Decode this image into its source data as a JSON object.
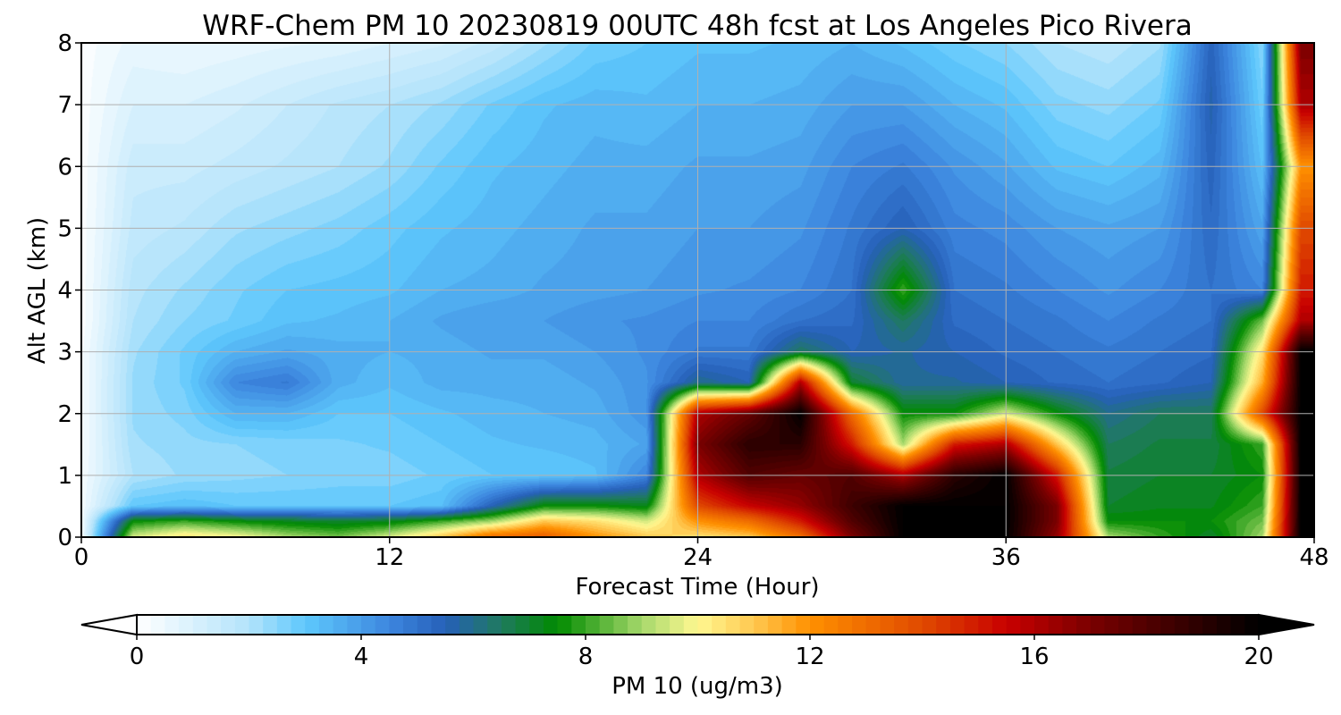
{
  "chart_data": {
    "type": "heatmap",
    "title": "WRF-Chem PM 10  20230819 00UTC 48h fcst at Los Angeles Pico Rivera",
    "xlabel": "Forecast Time (Hour)",
    "ylabel": "Alt AGL (km)",
    "xlim": [
      0,
      48
    ],
    "ylim": [
      0,
      8
    ],
    "x_ticks": [
      "0",
      "12",
      "24",
      "36",
      "48"
    ],
    "y_ticks": [
      "0",
      "1",
      "2",
      "3",
      "4",
      "5",
      "6",
      "7",
      "8"
    ],
    "grid": true,
    "colorbar": {
      "label": "PM 10  (ug/m3)",
      "range": [
        0,
        20
      ],
      "extend": "both",
      "ticks": [
        "0",
        "4",
        "8",
        "12",
        "16",
        "20"
      ],
      "color_stops": [
        {
          "value": 0,
          "color": "#ffffff"
        },
        {
          "value": 2,
          "color": "#b3e3fb"
        },
        {
          "value": 3,
          "color": "#5ec8fc"
        },
        {
          "value": 4.5,
          "color": "#3d86df"
        },
        {
          "value": 5.5,
          "color": "#2660b8"
        },
        {
          "value": 6.5,
          "color": "#1f7a5e"
        },
        {
          "value": 7.5,
          "color": "#008a00"
        },
        {
          "value": 9,
          "color": "#a6d86b"
        },
        {
          "value": 10,
          "color": "#fff891"
        },
        {
          "value": 11,
          "color": "#ffc850"
        },
        {
          "value": 12,
          "color": "#ff9000"
        },
        {
          "value": 14,
          "color": "#e04a00"
        },
        {
          "value": 15.5,
          "color": "#c80000"
        },
        {
          "value": 17,
          "color": "#7a0000"
        },
        {
          "value": 20,
          "color": "#000000"
        }
      ]
    },
    "x": [
      0,
      2,
      4,
      6,
      8,
      10,
      12,
      14,
      16,
      18,
      20,
      22,
      24,
      26,
      28,
      30,
      32,
      34,
      36,
      38,
      40,
      42,
      44,
      46,
      47.5
    ],
    "y": [
      0,
      0.25,
      0.5,
      1,
      1.5,
      2,
      2.5,
      3,
      3.5,
      4,
      5,
      6,
      7,
      8
    ],
    "values": [
      [
        0.3,
        0.3,
        0.3,
        0.3,
        0.2,
        0.2,
        0.2,
        0.2,
        0.1,
        0.1,
        0.1,
        0.1,
        0.1,
        0.1
      ],
      [
        9.5,
        7.5,
        3.0,
        2.0,
        2.2,
        2.3,
        2.3,
        2.2,
        2.0,
        1.9,
        1.6,
        1.4,
        1.0,
        0.6
      ],
      [
        10.5,
        8.0,
        3.2,
        2.3,
        2.4,
        2.6,
        2.8,
        2.8,
        2.5,
        2.3,
        1.8,
        1.4,
        1.0,
        0.5
      ],
      [
        10.0,
        7.5,
        3.0,
        2.4,
        2.5,
        3.5,
        4.5,
        3.5,
        2.8,
        2.7,
        2.2,
        1.6,
        1.2,
        0.6
      ],
      [
        9.0,
        7.2,
        3.0,
        2.5,
        2.6,
        3.5,
        4.8,
        3.8,
        3.2,
        3.0,
        2.4,
        1.8,
        1.5,
        0.7
      ],
      [
        8.5,
        7.0,
        3.0,
        2.6,
        2.7,
        3.0,
        3.6,
        3.6,
        3.3,
        3.1,
        2.6,
        2.0,
        1.8,
        0.8
      ],
      [
        9.5,
        7.2,
        3.0,
        2.6,
        2.8,
        3.0,
        3.3,
        3.5,
        3.5,
        3.2,
        2.9,
        2.3,
        2.0,
        1.0
      ],
      [
        11.0,
        8.0,
        3.2,
        2.8,
        3.0,
        3.2,
        3.6,
        3.6,
        3.8,
        3.5,
        3.2,
        2.8,
        2.3,
        1.2
      ],
      [
        13.0,
        9.0,
        5.5,
        3.0,
        3.2,
        3.4,
        3.6,
        3.8,
        4.0,
        3.6,
        3.4,
        3.2,
        2.8,
        1.6
      ],
      [
        13.5,
        11.0,
        7.5,
        3.0,
        3.3,
        3.5,
        3.6,
        3.8,
        4.0,
        3.8,
        3.6,
        3.4,
        3.2,
        2.2
      ],
      [
        12.0,
        10.5,
        7.5,
        3.2,
        3.4,
        3.6,
        3.8,
        4.0,
        4.2,
        3.9,
        3.8,
        3.6,
        3.4,
        2.8
      ],
      [
        11.0,
        9.5,
        7.2,
        4.5,
        3.8,
        4.2,
        4.2,
        4.3,
        4.3,
        4.0,
        3.8,
        3.6,
        3.3,
        3.0
      ],
      [
        10.5,
        12.0,
        14.0,
        16.0,
        17.0,
        16.0,
        6.0,
        4.8,
        4.5,
        4.2,
        4.0,
        3.8,
        3.5,
        3.2
      ],
      [
        11.0,
        13.0,
        15.5,
        18.0,
        19.0,
        17.5,
        5.5,
        4.8,
        4.5,
        4.3,
        4.0,
        3.8,
        3.5,
        3.2
      ],
      [
        13.0,
        15.0,
        16.5,
        17.5,
        19.0,
        20.0,
        16.0,
        6.5,
        5.0,
        4.5,
        4.2,
        3.9,
        3.6,
        3.3
      ],
      [
        17.0,
        18.0,
        18.5,
        18.0,
        15.0,
        13.0,
        7.0,
        5.5,
        5.2,
        5.0,
        4.8,
        4.5,
        4.0,
        3.5
      ],
      [
        20.0,
        20.0,
        20.0,
        16.0,
        9.0,
        7.5,
        5.8,
        5.8,
        6.5,
        8.0,
        5.5,
        4.8,
        4.0,
        3.2
      ],
      [
        20.0,
        20.0,
        20.0,
        19.0,
        15.0,
        7.5,
        5.8,
        5.5,
        5.2,
        5.0,
        4.6,
        4.2,
        3.5,
        2.8
      ],
      [
        20.0,
        20.0,
        20.0,
        20.0,
        16.0,
        9.5,
        5.5,
        5.2,
        5.0,
        4.8,
        4.4,
        3.8,
        3.2,
        2.5
      ],
      [
        16.5,
        17.0,
        17.0,
        15.0,
        11.0,
        7.5,
        5.2,
        5.0,
        4.8,
        4.5,
        4.0,
        3.2,
        2.6,
        2.0
      ],
      [
        9.0,
        7.5,
        7.0,
        6.8,
        6.5,
        6.0,
        5.0,
        4.8,
        4.5,
        4.2,
        3.8,
        3.0,
        2.4,
        1.8
      ],
      [
        8.0,
        7.5,
        7.2,
        7.0,
        6.8,
        6.5,
        5.2,
        5.0,
        4.8,
        4.5,
        4.0,
        3.4,
        2.8,
        2.2
      ],
      [
        7.0,
        7.5,
        7.2,
        7.0,
        6.8,
        6.5,
        5.5,
        5.2,
        5.0,
        5.0,
        5.2,
        5.4,
        5.6,
        5.4
      ],
      [
        9.0,
        8.5,
        8.0,
        7.5,
        8.0,
        14.0,
        11.5,
        10.5,
        8.5,
        4.5,
        3.8,
        3.2,
        2.8,
        2.5
      ],
      [
        20.0,
        20.0,
        20.0,
        20.0,
        20.0,
        20.0,
        20.0,
        20.0,
        16.0,
        15.0,
        14.0,
        12.0,
        16.0,
        17.0
      ]
    ]
  }
}
